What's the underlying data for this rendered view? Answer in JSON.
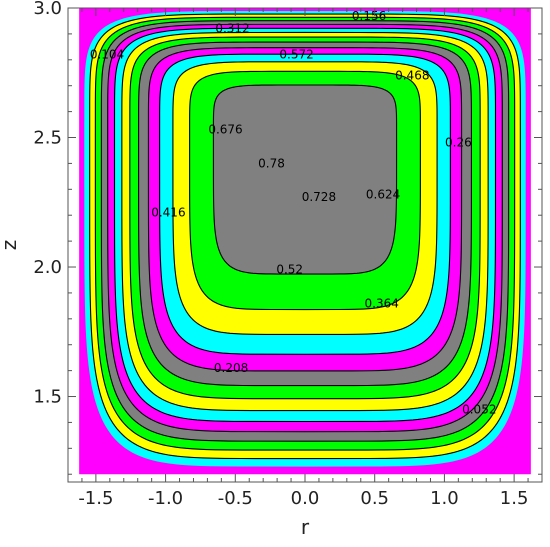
{
  "chart_data": {
    "type": "contour",
    "xlabel": "r",
    "ylabel": "z",
    "xlim": [
      -1.7,
      1.7
    ],
    "ylim": [
      1.17,
      3.0
    ],
    "x_ticks": [
      -1.5,
      -1.0,
      -0.5,
      0.0,
      0.5,
      1.0,
      1.5
    ],
    "x_tick_labels": [
      "-1.5",
      "-1.0",
      "-0.5",
      "0.0",
      "0.5",
      "1.0",
      "1.5"
    ],
    "y_ticks": [
      1.5,
      2.0,
      2.5,
      3.0
    ],
    "y_tick_labels": [
      "1.5",
      "2.0",
      "2.5",
      "3.0"
    ],
    "domain": {
      "r_range": [
        -1.62,
        1.62
      ],
      "z_range": [
        1.2,
        3.0
      ]
    },
    "vortex_center": {
      "r": 0.0,
      "z": 2.5
    },
    "fill_cycle": [
      "#ff00ff",
      "#00ffff",
      "#ffff00",
      "#00ff00",
      "#808080"
    ],
    "grid": false,
    "legend": "none",
    "contours": [
      {
        "value": 0.052,
        "label": "0.052",
        "r": 1.25,
        "z": 1.45
      },
      {
        "value": 0.104,
        "label": "0.104",
        "r": -1.42,
        "z": 2.82
      },
      {
        "value": 0.156,
        "label": "0.156",
        "r": 0.46,
        "z": 2.97
      },
      {
        "value": 0.208,
        "label": "0.208",
        "r": -0.53,
        "z": 1.61
      },
      {
        "value": 0.26,
        "label": "0.26",
        "r": 1.1,
        "z": 2.48
      },
      {
        "value": 0.312,
        "label": "0.312",
        "r": -0.52,
        "z": 2.92
      },
      {
        "value": 0.364,
        "label": "0.364",
        "r": 0.55,
        "z": 1.86
      },
      {
        "value": 0.416,
        "label": "0.416",
        "r": -0.98,
        "z": 2.21
      },
      {
        "value": 0.468,
        "label": "0.468",
        "r": 0.77,
        "z": 2.74
      },
      {
        "value": 0.52,
        "label": "0.52",
        "r": -0.11,
        "z": 1.99
      },
      {
        "value": 0.572,
        "label": "0.572",
        "r": -0.06,
        "z": 2.82
      },
      {
        "value": 0.624,
        "label": "0.624",
        "r": 0.56,
        "z": 2.28
      },
      {
        "value": 0.676,
        "label": "0.676",
        "r": -0.57,
        "z": 2.53
      },
      {
        "value": 0.728,
        "label": "0.728",
        "r": 0.1,
        "z": 2.27
      },
      {
        "value": 0.78,
        "label": "0.78",
        "r": -0.24,
        "z": 2.4
      }
    ]
  }
}
